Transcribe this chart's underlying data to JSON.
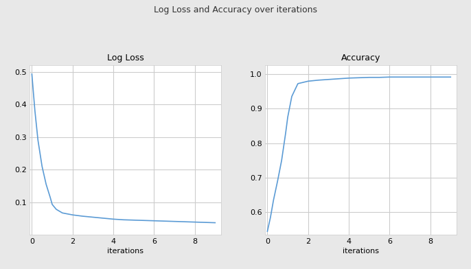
{
  "title": "Log Loss and Accuracy over iterations",
  "title_fontsize": 9,
  "left_title": "Log Loss",
  "right_title": "Accuracy",
  "xlabel": "iterations",
  "line_color": "#5b9bd5",
  "log_loss_x": [
    0,
    0.15,
    0.3,
    0.5,
    0.7,
    0.9,
    1.0,
    1.2,
    1.5,
    2.0,
    2.5,
    3.0,
    3.5,
    4.0,
    4.5,
    5.0,
    5.5,
    6.0,
    6.5,
    7.0,
    7.5,
    8.0,
    8.5,
    9.0
  ],
  "log_loss_y": [
    0.493,
    0.38,
    0.29,
    0.21,
    0.155,
    0.115,
    0.093,
    0.078,
    0.067,
    0.061,
    0.057,
    0.054,
    0.051,
    0.048,
    0.046,
    0.045,
    0.044,
    0.043,
    0.042,
    0.041,
    0.04,
    0.039,
    0.038,
    0.037
  ],
  "accuracy_x": [
    0,
    0.15,
    0.3,
    0.5,
    0.7,
    0.9,
    1.0,
    1.2,
    1.5,
    2.0,
    2.5,
    3.0,
    3.5,
    4.0,
    4.5,
    5.0,
    5.5,
    6.0,
    6.5,
    7.0,
    7.5,
    8.0,
    8.5,
    9.0
  ],
  "accuracy_y": [
    0.545,
    0.585,
    0.635,
    0.69,
    0.75,
    0.83,
    0.875,
    0.935,
    0.972,
    0.979,
    0.982,
    0.984,
    0.986,
    0.988,
    0.989,
    0.99,
    0.99,
    0.991,
    0.991,
    0.991,
    0.991,
    0.991,
    0.991,
    0.991
  ],
  "loss_xlim": [
    -0.1,
    9.3
  ],
  "loss_ylim": [
    0,
    0.52
  ],
  "acc_xlim": [
    -0.1,
    9.3
  ],
  "acc_ylim": [
    0.535,
    1.025
  ],
  "loss_yticks": [
    0.1,
    0.2,
    0.3,
    0.4,
    0.5
  ],
  "acc_yticks": [
    0.6,
    0.7,
    0.8,
    0.9,
    1.0
  ],
  "xticks": [
    0,
    2,
    4,
    6,
    8
  ],
  "background_color": "#e8e8e8",
  "subplot_bg": "#ffffff",
  "grid_color": "#cccccc",
  "grid_linewidth": 0.8,
  "spine_color": "#cccccc",
  "tick_label_size": 8,
  "subtitle_fontsize": 9,
  "xlabel_fontsize": 8
}
